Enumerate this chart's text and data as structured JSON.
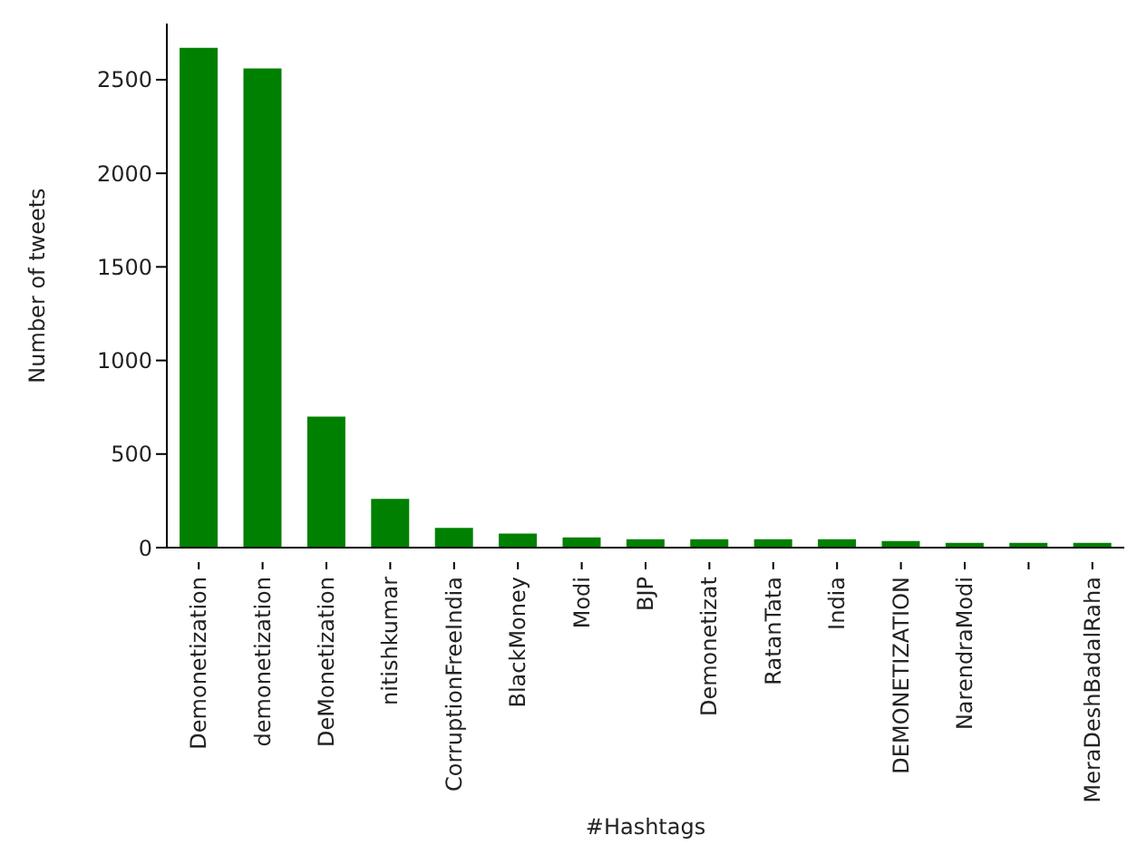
{
  "chart_data": {
    "type": "bar",
    "xlabel": "#Hashtags",
    "ylabel": "Number of tweets",
    "categories": [
      "Demonetization",
      "demonetization",
      "DeMonetization",
      "nitishkumar",
      "CorruptionFreeIndia",
      "BlackMoney",
      "Modi",
      "BJP",
      "Demonetizat",
      "RatanTata",
      "India",
      "DEMONETIZATION",
      "NarendraModi",
      null,
      "MeraDeshBadalRaha"
    ],
    "values": [
      2670,
      2560,
      700,
      260,
      105,
      75,
      55,
      45,
      45,
      45,
      45,
      35,
      25,
      25,
      25
    ],
    "color": "#008000",
    "ylim": [
      0,
      2800
    ],
    "yticks": [
      0,
      500,
      1000,
      1500,
      2000,
      2500
    ],
    "grid": false,
    "legend": false
  }
}
